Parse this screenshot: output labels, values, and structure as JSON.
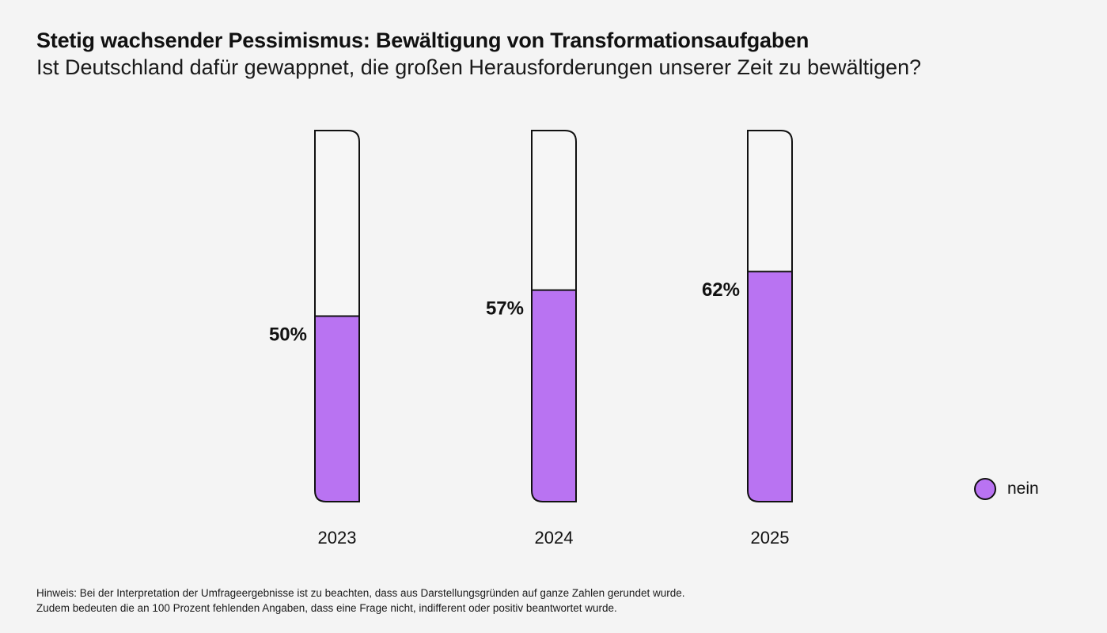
{
  "chart_data": {
    "type": "bar",
    "title": "Stetig wachsender Pessimismus: Bewältigung von Transformationsaufgaben",
    "subtitle": "Ist Deutschland dafür gewappnet, die großen Herausforderungen unserer Zeit zu bewältigen?",
    "categories": [
      "2023",
      "2024",
      "2025"
    ],
    "series": [
      {
        "name": "nein",
        "values": [
          50,
          57,
          62
        ],
        "labels": [
          "50%",
          "57%",
          "62%"
        ],
        "color": "#b973f2"
      }
    ],
    "ylim": [
      0,
      100
    ],
    "grid": false,
    "legend": "bottom-right",
    "note": [
      "Hinweis: Bei der Interpretation der Umfrageergebnisse ist zu beachten, dass aus Darstellungsgründen auf ganze Zahlen gerundet wurde.",
      "Zudem bedeuten die an 100 Prozent fehlenden Angaben, dass eine Frage nicht, indifferent oder positiv beantwortet wurde."
    ]
  }
}
